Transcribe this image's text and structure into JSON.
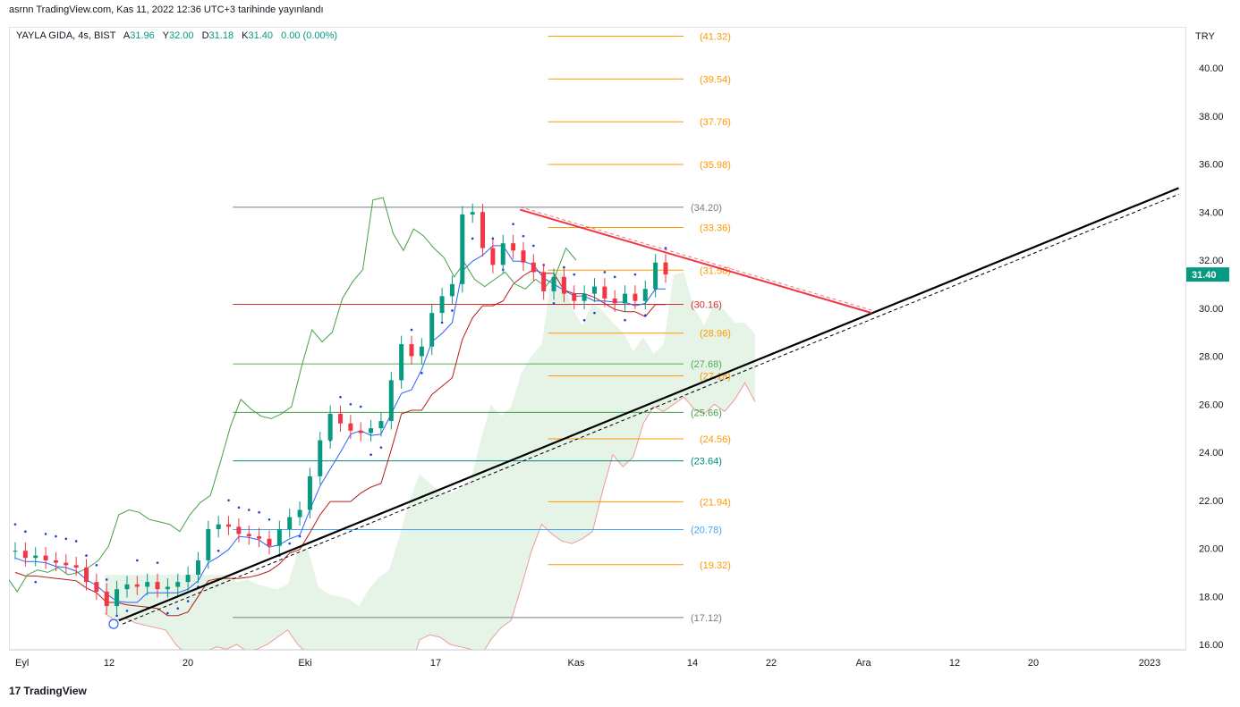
{
  "header": {
    "text": "asrnn TradingView.com, Kas 11, 2022 12:36 UTC+3 tarihinde yayınlandı"
  },
  "legend": {
    "symbol": "YAYLA GIDA, 4s, BIST",
    "open_label": "A",
    "open": "31.96",
    "high_label": "Y",
    "high": "32.00",
    "low_label": "D",
    "low": "31.18",
    "close_label": "K",
    "close": "31.40",
    "change": "0.00 (0.00%)"
  },
  "currency": "TRY",
  "footer": {
    "brand": "TradingView",
    "logo": "17"
  },
  "chart_data": {
    "type": "candlestick",
    "symbol": "YAYLA GIDA",
    "interval": "4s",
    "exchange": "BIST",
    "currency": "TRY",
    "last_price": 31.4,
    "y_axis": {
      "min": 15.8,
      "max": 42.0,
      "ticks": [
        16.0,
        18.0,
        20.0,
        22.0,
        24.0,
        26.0,
        28.0,
        30.0,
        32.0,
        34.0,
        36.0,
        38.0,
        40.0
      ]
    },
    "x_axis": {
      "ticks": [
        {
          "label": "Eyl",
          "date": "2022-09-01"
        },
        {
          "label": "12",
          "date": "2022-09-12"
        },
        {
          "label": "20",
          "date": "2022-09-20"
        },
        {
          "label": "Eki",
          "date": "2022-10-03"
        },
        {
          "label": "17",
          "date": "2022-10-17"
        },
        {
          "label": "Kas",
          "date": "2022-11-01"
        },
        {
          "label": "14",
          "date": "2022-11-14"
        },
        {
          "label": "22",
          "date": "2022-11-22"
        },
        {
          "label": "Ara",
          "date": "2022-12-01"
        },
        {
          "label": "12",
          "date": "2022-12-12"
        },
        {
          "label": "20",
          "date": "2022-12-20"
        },
        {
          "label": "2023",
          "date": "2023-01-01"
        }
      ]
    },
    "fib_levels_left": [
      {
        "label": "(34.20)",
        "value": 34.2,
        "color": "#787b86"
      },
      {
        "label": "(30.16)",
        "value": 30.16,
        "color": "#d32f2f"
      },
      {
        "label": "(27.68)",
        "value": 27.68,
        "color": "#4caf50"
      },
      {
        "label": "(25.66)",
        "value": 25.66,
        "color": "#43a047"
      },
      {
        "label": "(23.64)",
        "value": 23.64,
        "color": "#00897b"
      },
      {
        "label": "(20.78)",
        "value": 20.78,
        "color": "#42a5f5"
      },
      {
        "label": "(17.12)",
        "value": 17.12,
        "color": "#787b86"
      }
    ],
    "fib_levels_right": [
      {
        "label": "(41.32)",
        "value": 41.32
      },
      {
        "label": "(39.54)",
        "value": 39.54
      },
      {
        "label": "(37.76)",
        "value": 37.76
      },
      {
        "label": "(35.98)",
        "value": 35.98
      },
      {
        "label": "(33.36)",
        "value": 33.36
      },
      {
        "label": "(31.58)",
        "value": 31.58
      },
      {
        "label": "(28.96)",
        "value": 28.96
      },
      {
        "label": "(27.18)",
        "value": 27.18
      },
      {
        "label": "(24.56)",
        "value": 24.56
      },
      {
        "label": "(21.94)",
        "value": 21.94
      },
      {
        "label": "(19.32)",
        "value": 19.32
      }
    ],
    "trendlines": [
      {
        "name": "support",
        "from": {
          "date": "2022-09-13",
          "value": 17.0
        },
        "to": {
          "date": "2023-01-04",
          "value": 35.0
        },
        "color": "#000000"
      },
      {
        "name": "resistance",
        "from": {
          "date": "2022-10-26",
          "value": 34.1
        },
        "to": {
          "date": "2022-12-02",
          "value": 29.8
        },
        "color": "#f23645"
      }
    ],
    "close_series_approx": [
      19.9,
      19.6,
      19.7,
      19.5,
      19.4,
      19.3,
      19.2,
      18.6,
      18.2,
      17.6,
      18.3,
      18.5,
      18.4,
      18.6,
      18.3,
      18.4,
      18.6,
      18.9,
      19.5,
      20.8,
      21.0,
      20.9,
      20.6,
      20.5,
      20.4,
      20.1,
      20.8,
      21.3,
      21.6,
      23.0,
      24.5,
      25.6,
      25.2,
      24.9,
      24.8,
      25.0,
      25.3,
      27.0,
      28.5,
      28.0,
      28.4,
      29.8,
      30.5,
      31.0,
      33.9,
      34.0,
      32.5,
      31.8,
      32.7,
      32.4,
      31.9,
      31.5,
      30.7,
      31.3,
      30.6,
      30.3,
      30.6,
      30.9,
      30.4,
      30.2,
      30.6,
      30.3,
      30.8,
      31.9,
      31.4
    ]
  }
}
